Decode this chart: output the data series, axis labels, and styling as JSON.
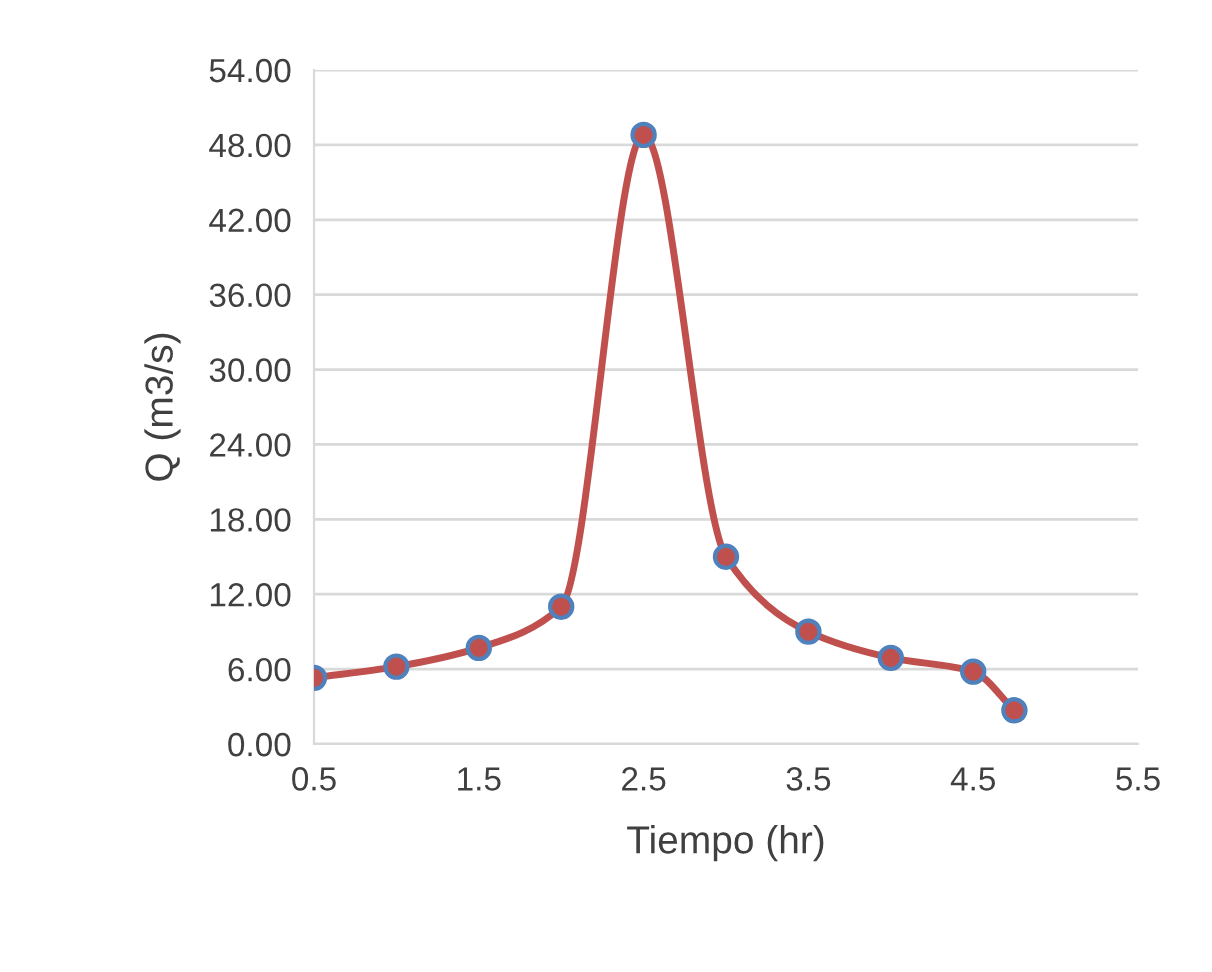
{
  "chart_data": {
    "type": "line",
    "xlabel": "Tiempo (hr)",
    "ylabel": "Q (m3/s)",
    "x": [
      0.5,
      1.0,
      1.5,
      2.0,
      2.5,
      3.0,
      3.5,
      4.0,
      4.5,
      4.75
    ],
    "series": [
      {
        "color": "#c0504d",
        "values": [
          5.3,
          6.2,
          7.7,
          11.0,
          48.8,
          15.0,
          9.0,
          6.9,
          5.8,
          2.7
        ]
      }
    ],
    "marker": "circle",
    "line_style": "solid",
    "grid": "y",
    "xlim": [
      0.5,
      5.5
    ],
    "xticks": [
      0.5,
      1.5,
      2.5,
      3.5,
      4.5,
      5.5
    ],
    "ylim": [
      0,
      54
    ],
    "yticks": [
      {
        "value": 0,
        "label": "0.00"
      },
      {
        "value": 6,
        "label": "6.00"
      },
      {
        "value": 12,
        "label": "12.00"
      },
      {
        "value": 18,
        "label": "18.00"
      },
      {
        "value": 24,
        "label": "24.00"
      },
      {
        "value": 30,
        "label": "30.00"
      },
      {
        "value": 36,
        "label": "36.00"
      },
      {
        "value": 42,
        "label": "42.00"
      },
      {
        "value": 48,
        "label": "48.00"
      },
      {
        "value": 54,
        "label": "54.00"
      }
    ]
  }
}
